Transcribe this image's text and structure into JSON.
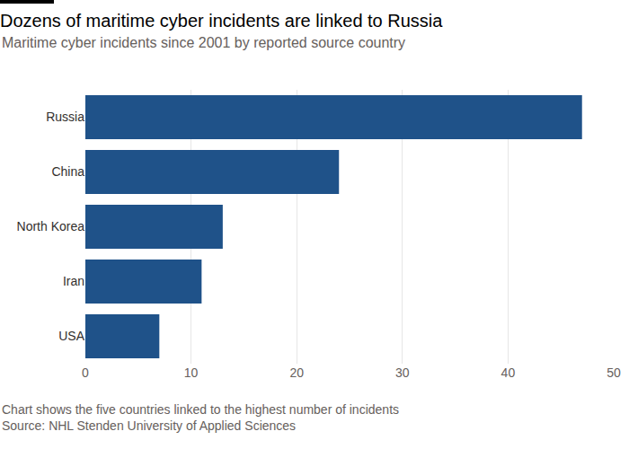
{
  "chart_data": {
    "type": "bar",
    "title": "Dozens of maritime cyber incidents are linked to Russia",
    "subtitle": "Maritime cyber incidents since 2001 by reported source country",
    "annotations": [
      "Chart shows the five countries linked to the highest number of incidents",
      "Source: NHL Stenden University of Applied Sciences"
    ],
    "categories": [
      "Russia",
      "China",
      "North Korea",
      "Iran",
      "USA"
    ],
    "values": [
      47,
      24,
      13,
      11,
      7
    ],
    "color": "#1f5289",
    "orientation": "horizontal",
    "xlim": [
      0,
      50
    ],
    "xticks": [
      0,
      10,
      20,
      30,
      40,
      50
    ],
    "grid": true
  }
}
